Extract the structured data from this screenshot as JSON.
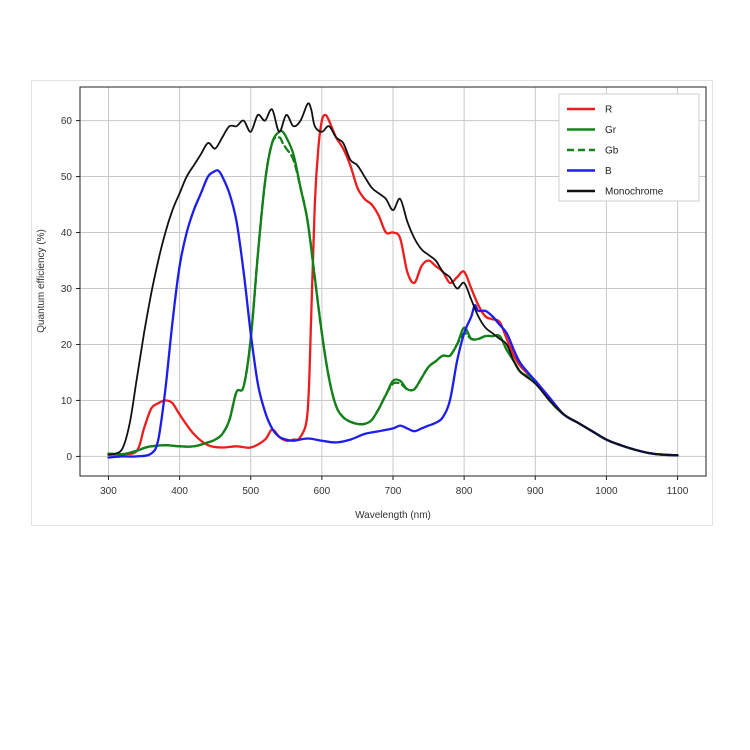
{
  "chart_data": {
    "type": "line",
    "title": "",
    "xlabel": "Wavelength (nm)",
    "ylabel": "Quantum efficiency (%)",
    "xlim": [
      260,
      1140
    ],
    "ylim": [
      -3.5,
      66
    ],
    "xticks": [
      300,
      400,
      500,
      600,
      700,
      800,
      900,
      1000,
      1100
    ],
    "yticks": [
      0,
      10,
      20,
      30,
      40,
      50,
      60
    ],
    "grid": true,
    "legend_position": "top-right",
    "series": [
      {
        "name": "R",
        "color": "#ee1c1c",
        "style": "solid",
        "x": [
          300,
          320,
          340,
          350,
          360,
          370,
          380,
          390,
          400,
          420,
          440,
          460,
          480,
          500,
          520,
          530,
          540,
          550,
          560,
          570,
          580,
          585,
          590,
          595,
          600,
          605,
          610,
          620,
          630,
          640,
          650,
          660,
          670,
          680,
          690,
          700,
          710,
          720,
          730,
          740,
          750,
          760,
          770,
          780,
          790,
          800,
          810,
          820,
          830,
          840,
          850,
          860,
          870,
          880,
          900,
          920,
          940,
          960,
          980,
          1000,
          1020,
          1040,
          1060,
          1080,
          1100
        ],
        "y": [
          0.3,
          0.4,
          1.0,
          5.0,
          8.5,
          9.5,
          10.0,
          9.5,
          7.5,
          4.0,
          2.0,
          1.6,
          1.8,
          1.6,
          3.0,
          4.8,
          3.5,
          2.8,
          3.0,
          3.5,
          8.0,
          25,
          45,
          55,
          60,
          61,
          60,
          57,
          55,
          52,
          48,
          46,
          45,
          43,
          40,
          40,
          39,
          33,
          31,
          34,
          35,
          34,
          33,
          31,
          32,
          33,
          30,
          27,
          25,
          24.5,
          24,
          21,
          18,
          16,
          13.5,
          10.5,
          7.5,
          6,
          4.5,
          3,
          2,
          1.2,
          0.6,
          0.3,
          0.2
        ]
      },
      {
        "name": "Gr",
        "color": "#13801a",
        "style": "solid",
        "x": [
          300,
          320,
          340,
          350,
          360,
          380,
          400,
          420,
          440,
          450,
          460,
          470,
          480,
          490,
          500,
          510,
          520,
          530,
          540,
          545,
          550,
          560,
          570,
          580,
          590,
          600,
          610,
          620,
          630,
          640,
          650,
          660,
          670,
          680,
          690,
          700,
          710,
          720,
          730,
          740,
          750,
          760,
          770,
          780,
          790,
          800,
          810,
          820,
          830,
          840,
          850,
          860,
          870,
          880,
          900,
          920,
          940,
          960,
          980,
          1000,
          1020,
          1040,
          1060,
          1080,
          1100
        ],
        "y": [
          0.5,
          0.4,
          1.0,
          1.5,
          1.8,
          2.0,
          1.8,
          1.8,
          2.5,
          3.0,
          4.0,
          6.5,
          11.5,
          12.5,
          21,
          36,
          49,
          56,
          58,
          58,
          57,
          54,
          48,
          42,
          32,
          22,
          14,
          9,
          7,
          6.2,
          5.8,
          5.8,
          6.5,
          8.5,
          11,
          13.5,
          13.5,
          12,
          12,
          14,
          16,
          17,
          18,
          18,
          20,
          23,
          21,
          21,
          21.5,
          21.5,
          21.5,
          19,
          17,
          15,
          13.5,
          10,
          7.5,
          6,
          4.5,
          3,
          2,
          1.2,
          0.6,
          0.3,
          0.2
        ]
      },
      {
        "name": "Gb",
        "color": "#13801a",
        "style": "dashed",
        "x": [
          300,
          320,
          340,
          350,
          360,
          380,
          400,
          420,
          440,
          450,
          460,
          470,
          480,
          490,
          500,
          510,
          520,
          530,
          540,
          545,
          550,
          560,
          570,
          580,
          590,
          600,
          610,
          620,
          630,
          640,
          650,
          660,
          670,
          680,
          690,
          700,
          710,
          720,
          730,
          740,
          750,
          760,
          770,
          780,
          790,
          800,
          810,
          820,
          830,
          840,
          850,
          860,
          870,
          880,
          900,
          920,
          940,
          960,
          980,
          1000,
          1020,
          1040,
          1060,
          1080,
          1100
        ],
        "y": [
          0.5,
          0.4,
          1.0,
          1.5,
          1.8,
          2.0,
          1.8,
          1.8,
          2.5,
          3.0,
          4.0,
          6.5,
          11.5,
          12.5,
          21,
          36,
          49,
          56,
          57,
          56,
          55,
          53,
          48,
          42,
          32,
          22,
          14,
          9,
          7,
          6.2,
          5.8,
          5.8,
          6.5,
          8.5,
          11,
          13,
          13,
          12,
          12,
          14,
          16,
          17,
          18,
          18,
          20,
          22,
          21,
          21,
          21.5,
          21.5,
          21.5,
          19,
          17,
          15,
          13.5,
          10,
          7.5,
          6,
          4.5,
          3,
          2,
          1.2,
          0.6,
          0.3,
          0.2
        ]
      },
      {
        "name": "B",
        "color": "#1d1ded",
        "style": "solid",
        "x": [
          300,
          320,
          340,
          360,
          370,
          380,
          390,
          400,
          410,
          420,
          430,
          440,
          450,
          455,
          460,
          470,
          480,
          490,
          500,
          510,
          520,
          530,
          540,
          550,
          560,
          580,
          600,
          620,
          640,
          660,
          680,
          700,
          710,
          720,
          730,
          740,
          750,
          760,
          770,
          780,
          790,
          800,
          810,
          815,
          820,
          830,
          840,
          850,
          860,
          870,
          880,
          900,
          920,
          940,
          960,
          980,
          1000,
          1020,
          1040,
          1060,
          1080,
          1100
        ],
        "y": [
          -0.2,
          0,
          0,
          0.5,
          3,
          12,
          24,
          34,
          40,
          44,
          47,
          50,
          51,
          51,
          50,
          47,
          42,
          33,
          22,
          13,
          8,
          5,
          3.5,
          3,
          2.8,
          3.2,
          2.8,
          2.5,
          3,
          4,
          4.5,
          5,
          5.5,
          5,
          4.5,
          5,
          5.5,
          6,
          7,
          10,
          17,
          22,
          25,
          27,
          26,
          26,
          25,
          23.5,
          22,
          19,
          16.5,
          13.5,
          10.5,
          7.5,
          6,
          4.5,
          3,
          2,
          1.2,
          0.6,
          0.3,
          0.2
        ]
      },
      {
        "name": "Monochrome",
        "color": "#111111",
        "style": "solid",
        "x": [
          300,
          310,
          320,
          330,
          340,
          350,
          360,
          370,
          380,
          390,
          400,
          410,
          420,
          430,
          440,
          450,
          460,
          470,
          480,
          490,
          500,
          510,
          520,
          530,
          540,
          550,
          560,
          570,
          580,
          585,
          590,
          600,
          610,
          620,
          630,
          640,
          650,
          660,
          670,
          680,
          690,
          700,
          710,
          720,
          730,
          740,
          750,
          760,
          770,
          780,
          790,
          800,
          810,
          820,
          830,
          840,
          850,
          860,
          870,
          880,
          900,
          920,
          940,
          960,
          980,
          1000,
          1020,
          1040,
          1060,
          1080,
          1100
        ],
        "y": [
          0.3,
          0.5,
          1.5,
          6,
          14,
          22,
          29,
          35,
          40,
          44,
          47,
          50,
          52,
          54,
          56,
          55,
          57,
          59,
          59,
          60,
          58,
          61,
          60,
          62,
          58,
          61,
          59,
          60,
          63,
          62,
          59,
          58,
          59,
          57,
          56,
          53,
          52,
          50,
          48,
          47,
          46,
          44,
          46,
          42,
          39,
          37,
          36,
          35,
          33,
          32,
          30,
          31,
          28,
          25,
          23,
          22,
          21,
          20,
          17,
          15,
          13,
          10,
          7.5,
          6,
          4.5,
          3,
          2,
          1.2,
          0.6,
          0.3,
          0.2
        ]
      }
    ]
  }
}
